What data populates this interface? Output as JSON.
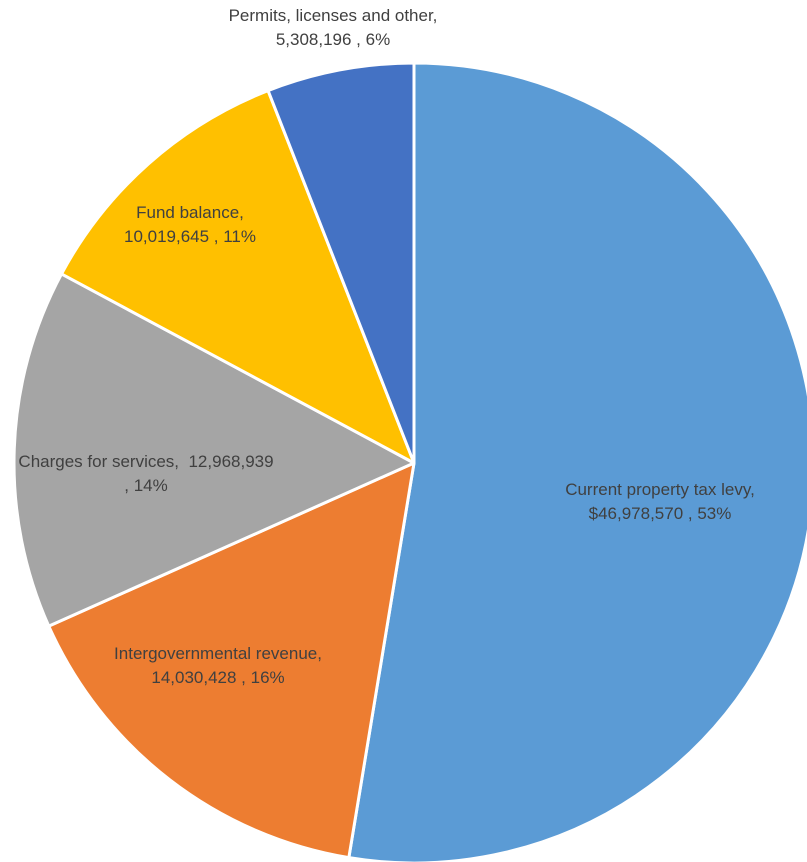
{
  "chart_data": {
    "type": "pie",
    "slices": [
      {
        "label": "Current property tax levy",
        "value": 46978570,
        "percent": 53,
        "color": "#5B9BD5",
        "label_lines": [
          "Current property tax levy,",
          "$46,978,570 , 53%"
        ]
      },
      {
        "label": "Intergovernmental revenue",
        "value": 14030428,
        "percent": 16,
        "color": "#ED7D31",
        "label_lines": [
          "Intergovernmental revenue,",
          "14,030,428 , 16%"
        ]
      },
      {
        "label": "Charges for services",
        "value": 12968939,
        "percent": 14,
        "color": "#A5A5A5",
        "label_lines": [
          "Charges for services,  12,968,939",
          ", 14%"
        ]
      },
      {
        "label": "Fund balance",
        "value": 10019645,
        "percent": 11,
        "color": "#FFC000",
        "label_lines": [
          "Fund balance,",
          "10,019,645 , 11%"
        ]
      },
      {
        "label": "Permits, licenses and other",
        "value": 5308196,
        "percent": 6,
        "color": "#4472C4",
        "label_lines": [
          "Permits, licenses and other,",
          "5,308,196 , 6%"
        ]
      }
    ],
    "start_angle": "12 o'clock",
    "direction": "clockwise",
    "legend": "none"
  }
}
